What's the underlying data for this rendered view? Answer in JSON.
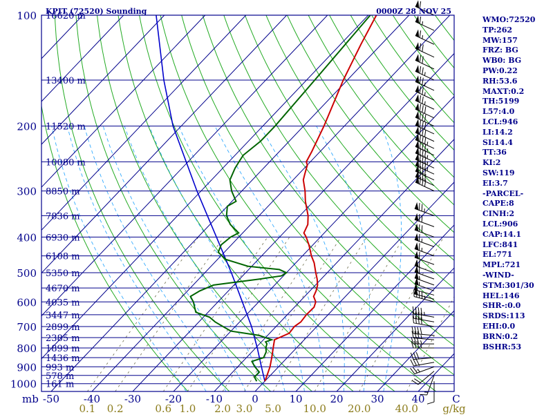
{
  "header": {
    "title": "KPIT (72520) Sounding",
    "datetime": "0000Z 28 NOV 25"
  },
  "chart_data": {
    "type": "skew-t",
    "title": "KPIT (72520) Sounding",
    "pressure_ticks": [
      "100",
      "200",
      "300",
      "400",
      "500",
      "600",
      "700",
      "800",
      "900",
      "1000"
    ],
    "pressure_values": [
      100,
      200,
      300,
      400,
      500,
      600,
      700,
      800,
      900,
      1000
    ],
    "height_labels": [
      {
        "p": 100,
        "label": "16620 m"
      },
      {
        "p": 150,
        "label": "13400 m"
      },
      {
        "p": 200,
        "label": "11520 m"
      },
      {
        "p": 250,
        "label": "10080 m"
      },
      {
        "p": 300,
        "label": "8850 m"
      },
      {
        "p": 350,
        "label": "7836 m"
      },
      {
        "p": 400,
        "label": "6930 m"
      },
      {
        "p": 450,
        "label": "6108 m"
      },
      {
        "p": 500,
        "label": "5350 m"
      },
      {
        "p": 550,
        "label": "4670 m"
      },
      {
        "p": 600,
        "label": "4035 m"
      },
      {
        "p": 650,
        "label": "3447 m"
      },
      {
        "p": 700,
        "label": "2899 m"
      },
      {
        "p": 750,
        "label": "2385 m"
      },
      {
        "p": 800,
        "label": "1899 m"
      },
      {
        "p": 850,
        "label": "1436 m"
      },
      {
        "p": 900,
        "label": "993 m"
      },
      {
        "p": 950,
        "label": "578 m"
      },
      {
        "p": 1000,
        "label": "161 m"
      }
    ],
    "xlabel_unit": "mb",
    "temp_ticks": [
      "-50",
      "-40",
      "-30",
      "-20",
      "-10",
      "0",
      "10",
      "20",
      "30",
      "40"
    ],
    "temp_values": [
      -50,
      -40,
      -30,
      -20,
      -10,
      0,
      10,
      20,
      30,
      40
    ],
    "mixing_ratio_labels": [
      "0.1",
      "0.2",
      "0.6",
      "1.0",
      "2.0",
      "3.0",
      "5.0",
      "10.0",
      "20.0",
      "40.0"
    ],
    "mixing_ratio_unit": "g/kg",
    "corner_label": "C",
    "xlim": [
      -50,
      50
    ],
    "ylim": [
      1050,
      100
    ],
    "temperature": [
      {
        "p": 985,
        "t": 0.0
      },
      {
        "p": 950,
        "t": -0.8
      },
      {
        "p": 900,
        "t": -2.1
      },
      {
        "p": 850,
        "t": -3.8
      },
      {
        "p": 800,
        "t": -5.7
      },
      {
        "p": 760,
        "t": -7.3
      },
      {
        "p": 750,
        "t": -6.6
      },
      {
        "p": 730,
        "t": -5.2
      },
      {
        "p": 700,
        "t": -5.5
      },
      {
        "p": 680,
        "t": -5.0
      },
      {
        "p": 650,
        "t": -5.3
      },
      {
        "p": 620,
        "t": -5.2
      },
      {
        "p": 600,
        "t": -6.0
      },
      {
        "p": 580,
        "t": -7.8
      },
      {
        "p": 560,
        "t": -8.5
      },
      {
        "p": 540,
        "t": -9.5
      },
      {
        "p": 520,
        "t": -11.0
      },
      {
        "p": 500,
        "t": -12.8
      },
      {
        "p": 470,
        "t": -15.5
      },
      {
        "p": 450,
        "t": -17.8
      },
      {
        "p": 420,
        "t": -21.0
      },
      {
        "p": 400,
        "t": -23.5
      },
      {
        "p": 390,
        "t": -25.0
      },
      {
        "p": 370,
        "t": -26.0
      },
      {
        "p": 350,
        "t": -28.0
      },
      {
        "p": 320,
        "t": -32.0
      },
      {
        "p": 300,
        "t": -34.5
      },
      {
        "p": 280,
        "t": -37.5
      },
      {
        "p": 270,
        "t": -38.5
      },
      {
        "p": 255,
        "t": -40.0
      },
      {
        "p": 250,
        "t": -41.0
      },
      {
        "p": 235,
        "t": -42.0
      },
      {
        "p": 200,
        "t": -45.0
      },
      {
        "p": 150,
        "t": -51.0
      },
      {
        "p": 120,
        "t": -55.0
      },
      {
        "p": 100,
        "t": -58.0
      }
    ],
    "dewpoint": [
      {
        "p": 985,
        "t": -2.0
      },
      {
        "p": 960,
        "t": -3.5
      },
      {
        "p": 930,
        "t": -3.5
      },
      {
        "p": 900,
        "t": -5.8
      },
      {
        "p": 870,
        "t": -7.8
      },
      {
        "p": 850,
        "t": -5.8
      },
      {
        "p": 820,
        "t": -6.5
      },
      {
        "p": 800,
        "t": -7.5
      },
      {
        "p": 780,
        "t": -8.2
      },
      {
        "p": 770,
        "t": -9.0
      },
      {
        "p": 760,
        "t": -8.0
      },
      {
        "p": 740,
        "t": -12.0
      },
      {
        "p": 720,
        "t": -20.0
      },
      {
        "p": 700,
        "t": -23.0
      },
      {
        "p": 680,
        "t": -26.0
      },
      {
        "p": 660,
        "t": -28.5
      },
      {
        "p": 640,
        "t": -33.0
      },
      {
        "p": 620,
        "t": -34.5
      },
      {
        "p": 600,
        "t": -36.0
      },
      {
        "p": 580,
        "t": -38.0
      },
      {
        "p": 560,
        "t": -37.0
      },
      {
        "p": 540,
        "t": -35.0
      },
      {
        "p": 520,
        "t": -25.0
      },
      {
        "p": 510,
        "t": -20.5
      },
      {
        "p": 500,
        "t": -20.0
      },
      {
        "p": 490,
        "t": -22.5
      },
      {
        "p": 480,
        "t": -31.0
      },
      {
        "p": 460,
        "t": -38.0
      },
      {
        "p": 440,
        "t": -41.5
      },
      {
        "p": 420,
        "t": -42.5
      },
      {
        "p": 400,
        "t": -42.0
      },
      {
        "p": 390,
        "t": -41.0
      },
      {
        "p": 370,
        "t": -45.0
      },
      {
        "p": 350,
        "t": -48.0
      },
      {
        "p": 330,
        "t": -50.0
      },
      {
        "p": 320,
        "t": -49.0
      },
      {
        "p": 300,
        "t": -52.5
      },
      {
        "p": 280,
        "t": -55.5
      },
      {
        "p": 260,
        "t": -57.0
      },
      {
        "p": 250,
        "t": -57.5
      },
      {
        "p": 240,
        "t": -58.0
      },
      {
        "p": 220,
        "t": -57.0
      },
      {
        "p": 200,
        "t": -57.0
      },
      {
        "p": 150,
        "t": -58.0
      },
      {
        "p": 100,
        "t": -59.5
      }
    ],
    "parcel": [
      {
        "p": 985,
        "t": 0.0
      },
      {
        "p": 900,
        "t": -4.2
      },
      {
        "p": 800,
        "t": -9.6
      },
      {
        "p": 700,
        "t": -16.0
      },
      {
        "p": 600,
        "t": -24.0
      },
      {
        "p": 500,
        "t": -33.5
      },
      {
        "p": 400,
        "t": -45.5
      },
      {
        "p": 300,
        "t": -61.0
      },
      {
        "p": 200,
        "t": -82.0
      },
      {
        "p": 150,
        "t": -95.0
      },
      {
        "p": 100,
        "t": -112.0
      }
    ],
    "dry_adiabats_theta_c": [
      -20,
      -10,
      0,
      10,
      20,
      30,
      40,
      50,
      60,
      70,
      80,
      90,
      100,
      110,
      120,
      130,
      140,
      150,
      160,
      170,
      180,
      190,
      200,
      210,
      220,
      230,
      240,
      250,
      260,
      270,
      280
    ],
    "moist_adiabats_tw_c": [
      -20,
      -15,
      -10,
      -5,
      0,
      5,
      10,
      15,
      20,
      25,
      30
    ],
    "mixing_ratio_lines_gkg": [
      0.1,
      0.2,
      0.6,
      1.0,
      2.0,
      3.0,
      5.0,
      10.0,
      20.0,
      40.0
    ],
    "wind_barbs": [
      {
        "p": 985,
        "dir": 180,
        "spd": 10
      },
      {
        "p": 950,
        "dir": 200,
        "spd": 15
      },
      {
        "p": 925,
        "dir": 230,
        "spd": 20
      },
      {
        "p": 900,
        "dir": 250,
        "spd": 25
      },
      {
        "p": 875,
        "dir": 260,
        "spd": 30
      },
      {
        "p": 850,
        "dir": 265,
        "spd": 30
      },
      {
        "p": 800,
        "dir": 270,
        "spd": 35
      },
      {
        "p": 780,
        "dir": 270,
        "spd": 35
      },
      {
        "p": 760,
        "dir": 275,
        "spd": 35
      },
      {
        "p": 740,
        "dir": 275,
        "spd": 40
      },
      {
        "p": 700,
        "dir": 280,
        "spd": 40
      },
      {
        "p": 680,
        "dir": 280,
        "spd": 40
      },
      {
        "p": 660,
        "dir": 280,
        "spd": 45
      },
      {
        "p": 600,
        "dir": 285,
        "spd": 45
      },
      {
        "p": 590,
        "dir": 285,
        "spd": 50
      },
      {
        "p": 575,
        "dir": 285,
        "spd": 50
      },
      {
        "p": 560,
        "dir": 290,
        "spd": 55
      },
      {
        "p": 540,
        "dir": 290,
        "spd": 55
      },
      {
        "p": 520,
        "dir": 290,
        "spd": 60
      },
      {
        "p": 500,
        "dir": 290,
        "spd": 60
      },
      {
        "p": 475,
        "dir": 290,
        "spd": 60
      },
      {
        "p": 450,
        "dir": 290,
        "spd": 65
      },
      {
        "p": 425,
        "dir": 290,
        "spd": 65
      },
      {
        "p": 400,
        "dir": 290,
        "spd": 70
      },
      {
        "p": 375,
        "dir": 290,
        "spd": 70
      },
      {
        "p": 350,
        "dir": 290,
        "spd": 75
      },
      {
        "p": 300,
        "dir": 295,
        "spd": 80
      },
      {
        "p": 290,
        "dir": 295,
        "spd": 80
      },
      {
        "p": 280,
        "dir": 295,
        "spd": 80
      },
      {
        "p": 270,
        "dir": 295,
        "spd": 85
      },
      {
        "p": 260,
        "dir": 295,
        "spd": 85
      },
      {
        "p": 250,
        "dir": 295,
        "spd": 85
      },
      {
        "p": 240,
        "dir": 295,
        "spd": 85
      },
      {
        "p": 230,
        "dir": 295,
        "spd": 85
      },
      {
        "p": 220,
        "dir": 295,
        "spd": 80
      },
      {
        "p": 210,
        "dir": 295,
        "spd": 80
      },
      {
        "p": 200,
        "dir": 295,
        "spd": 80
      },
      {
        "p": 190,
        "dir": 295,
        "spd": 80
      },
      {
        "p": 180,
        "dir": 295,
        "spd": 75
      },
      {
        "p": 170,
        "dir": 295,
        "spd": 75
      },
      {
        "p": 160,
        "dir": 295,
        "spd": 75
      },
      {
        "p": 150,
        "dir": 295,
        "spd": 75
      },
      {
        "p": 140,
        "dir": 295,
        "spd": 70
      },
      {
        "p": 130,
        "dir": 295,
        "spd": 70
      },
      {
        "p": 120,
        "dir": 295,
        "spd": 65
      },
      {
        "p": 110,
        "dir": 295,
        "spd": 65
      },
      {
        "p": 100,
        "dir": 295,
        "spd": 60
      }
    ],
    "colors": {
      "isobar": "#00008b",
      "frame": "#00008b",
      "isotherm": "#00008b",
      "dry_adiabat": "#22aa22",
      "moist_adiabat": "#33aaff",
      "mixing_ratio": "#6b6b4b",
      "temperature": "#cc0000",
      "dewpoint": "#006400",
      "parcel": "#0000cc",
      "label_text": "#00008b",
      "mixing_label": "#8b7b1a",
      "barb": "#000000"
    }
  },
  "side_panel": {
    "items": [
      "WMO:72520",
      "TP:262",
      "MW:157",
      "FRZ: BG",
      "WB0: BG",
      "PW:0.22",
      "RH:53.6",
      "MAXT:0.2",
      "TH:5199",
      "L57:4.0",
      "LCL:946",
      "LI:14.2",
      "SI:14.4",
      "TT:36",
      "KI:2",
      "SW:119",
      "EI:3.7",
      "-PARCEL-",
      "CAPE:8",
      "CINH:2",
      "LCL:906",
      "CAP:14.1",
      "LFC:841",
      "EL:771",
      "MPL:721",
      "-WIND-",
      "STM:301/30",
      "HEL:146",
      "SHR-:0.0",
      "SRDS:113",
      "EHI:0.0",
      "BRN:0.2",
      "BSHR:53"
    ]
  }
}
